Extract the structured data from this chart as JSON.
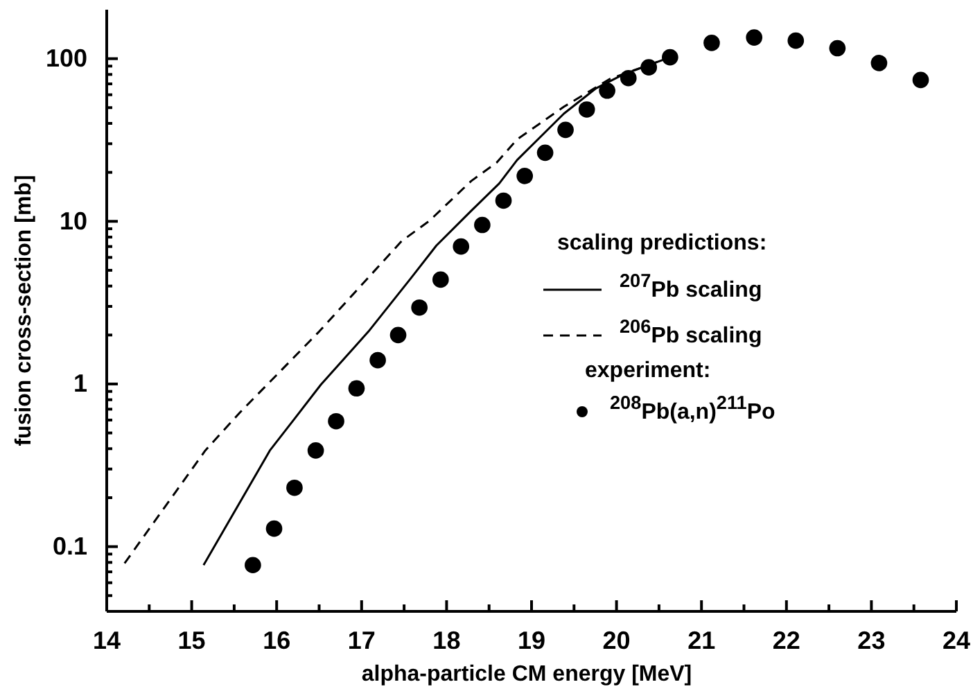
{
  "chart_data": {
    "type": "line",
    "xlabel": "alpha-particle CM energy [MeV]",
    "ylabel": "fusion cross-section [mb]",
    "log": "y",
    "xlim": [
      14,
      24
    ],
    "ylim": [
      0.04,
      200
    ],
    "xticks": [
      14,
      {
        "value": 14.5,
        "label": null
      },
      15,
      {
        "value": 15.5,
        "label": null
      },
      16,
      {
        "value": 16.5,
        "label": null
      },
      17,
      {
        "value": 17.5,
        "label": null
      },
      18,
      {
        "value": 18.5,
        "label": null
      },
      19,
      {
        "value": 19.5,
        "label": null
      },
      20,
      {
        "value": 20.5,
        "label": null
      },
      21,
      {
        "value": 21.5,
        "label": null
      },
      22,
      {
        "value": 22.5,
        "label": null
      },
      23,
      {
        "value": 23.5,
        "label": null
      },
      24
    ],
    "yticks": [
      {
        "value": 0.05,
        "label": null
      },
      {
        "value": 0.06,
        "label": null
      },
      {
        "value": 0.07,
        "label": null
      },
      {
        "value": 0.08,
        "label": null
      },
      {
        "value": 0.09,
        "label": null
      },
      0.1,
      {
        "value": 0.2,
        "label": null
      },
      {
        "value": 0.3,
        "label": null
      },
      {
        "value": 0.4,
        "label": null
      },
      {
        "value": 0.5,
        "label": null
      },
      {
        "value": 0.6,
        "label": null
      },
      {
        "value": 0.7,
        "label": null
      },
      {
        "value": 0.8,
        "label": null
      },
      {
        "value": 0.9,
        "label": null
      },
      1,
      {
        "value": 2,
        "label": null
      },
      {
        "value": 3,
        "label": null
      },
      {
        "value": 4,
        "label": null
      },
      {
        "value": 5,
        "label": null
      },
      {
        "value": 6,
        "label": null
      },
      {
        "value": 7,
        "label": null
      },
      {
        "value": 8,
        "label": null
      },
      {
        "value": 9,
        "label": null
      },
      10,
      {
        "value": 20,
        "label": null
      },
      {
        "value": 30,
        "label": null
      },
      {
        "value": 40,
        "label": null
      },
      {
        "value": 50,
        "label": null
      },
      {
        "value": 60,
        "label": null
      },
      {
        "value": 70,
        "label": null
      },
      {
        "value": 80,
        "label": null
      },
      {
        "value": 90,
        "label": null
      },
      100
    ],
    "grid": false,
    "legend": "right",
    "legend_title": "scaling predictions:",
    "annotations": [
      "experiment:"
    ],
    "series": [
      {
        "name": "$^{207}$Pb scaling",
        "line_style": "solid",
        "marker": "none",
        "color": "#000000",
        "x": [
          15.14,
          15.92,
          16.22,
          16.52,
          17.08,
          17.58,
          17.88,
          18.29,
          18.62,
          18.83,
          19.38,
          19.76,
          20.08,
          20.63
        ],
        "values": [
          0.077,
          0.39,
          0.62,
          0.99,
          2.1,
          4.47,
          7.1,
          11.6,
          17.1,
          23.8,
          45.9,
          65.8,
          80,
          102
        ]
      },
      {
        "name": "$^{206}$Pb scaling",
        "line_style": "dashed",
        "marker": "none",
        "color": "#000000",
        "x": [
          14.21,
          15.16,
          15.57,
          16.5,
          17.47,
          17.8,
          18.29,
          18.59,
          18.83,
          19.38,
          19.92,
          20.63
        ],
        "values": [
          0.079,
          0.39,
          0.67,
          2.1,
          7.55,
          10.1,
          17.7,
          23,
          31.9,
          50.6,
          75,
          102
        ]
      },
      {
        "name": "$^{208}$Pb(a,n)$^{211}$Po",
        "type": "scatter",
        "marker": "circle",
        "color": "#000000",
        "x": [
          15.72,
          15.97,
          16.21,
          16.46,
          16.7,
          16.94,
          17.19,
          17.43,
          17.68,
          17.93,
          18.17,
          18.42,
          18.67,
          18.92,
          19.16,
          19.4,
          19.65,
          19.89,
          20.14,
          20.38,
          20.63,
          21.12,
          21.62,
          22.11,
          22.6,
          23.09,
          23.58
        ],
        "values": [
          0.077,
          0.129,
          0.23,
          0.39,
          0.59,
          0.94,
          1.4,
          2.0,
          2.95,
          4.38,
          7.0,
          9.5,
          13.4,
          19.0,
          26.4,
          36.5,
          48.7,
          63.6,
          75.9,
          88.4,
          102,
          125,
          135,
          129,
          116,
          94,
          74
        ]
      }
    ]
  }
}
